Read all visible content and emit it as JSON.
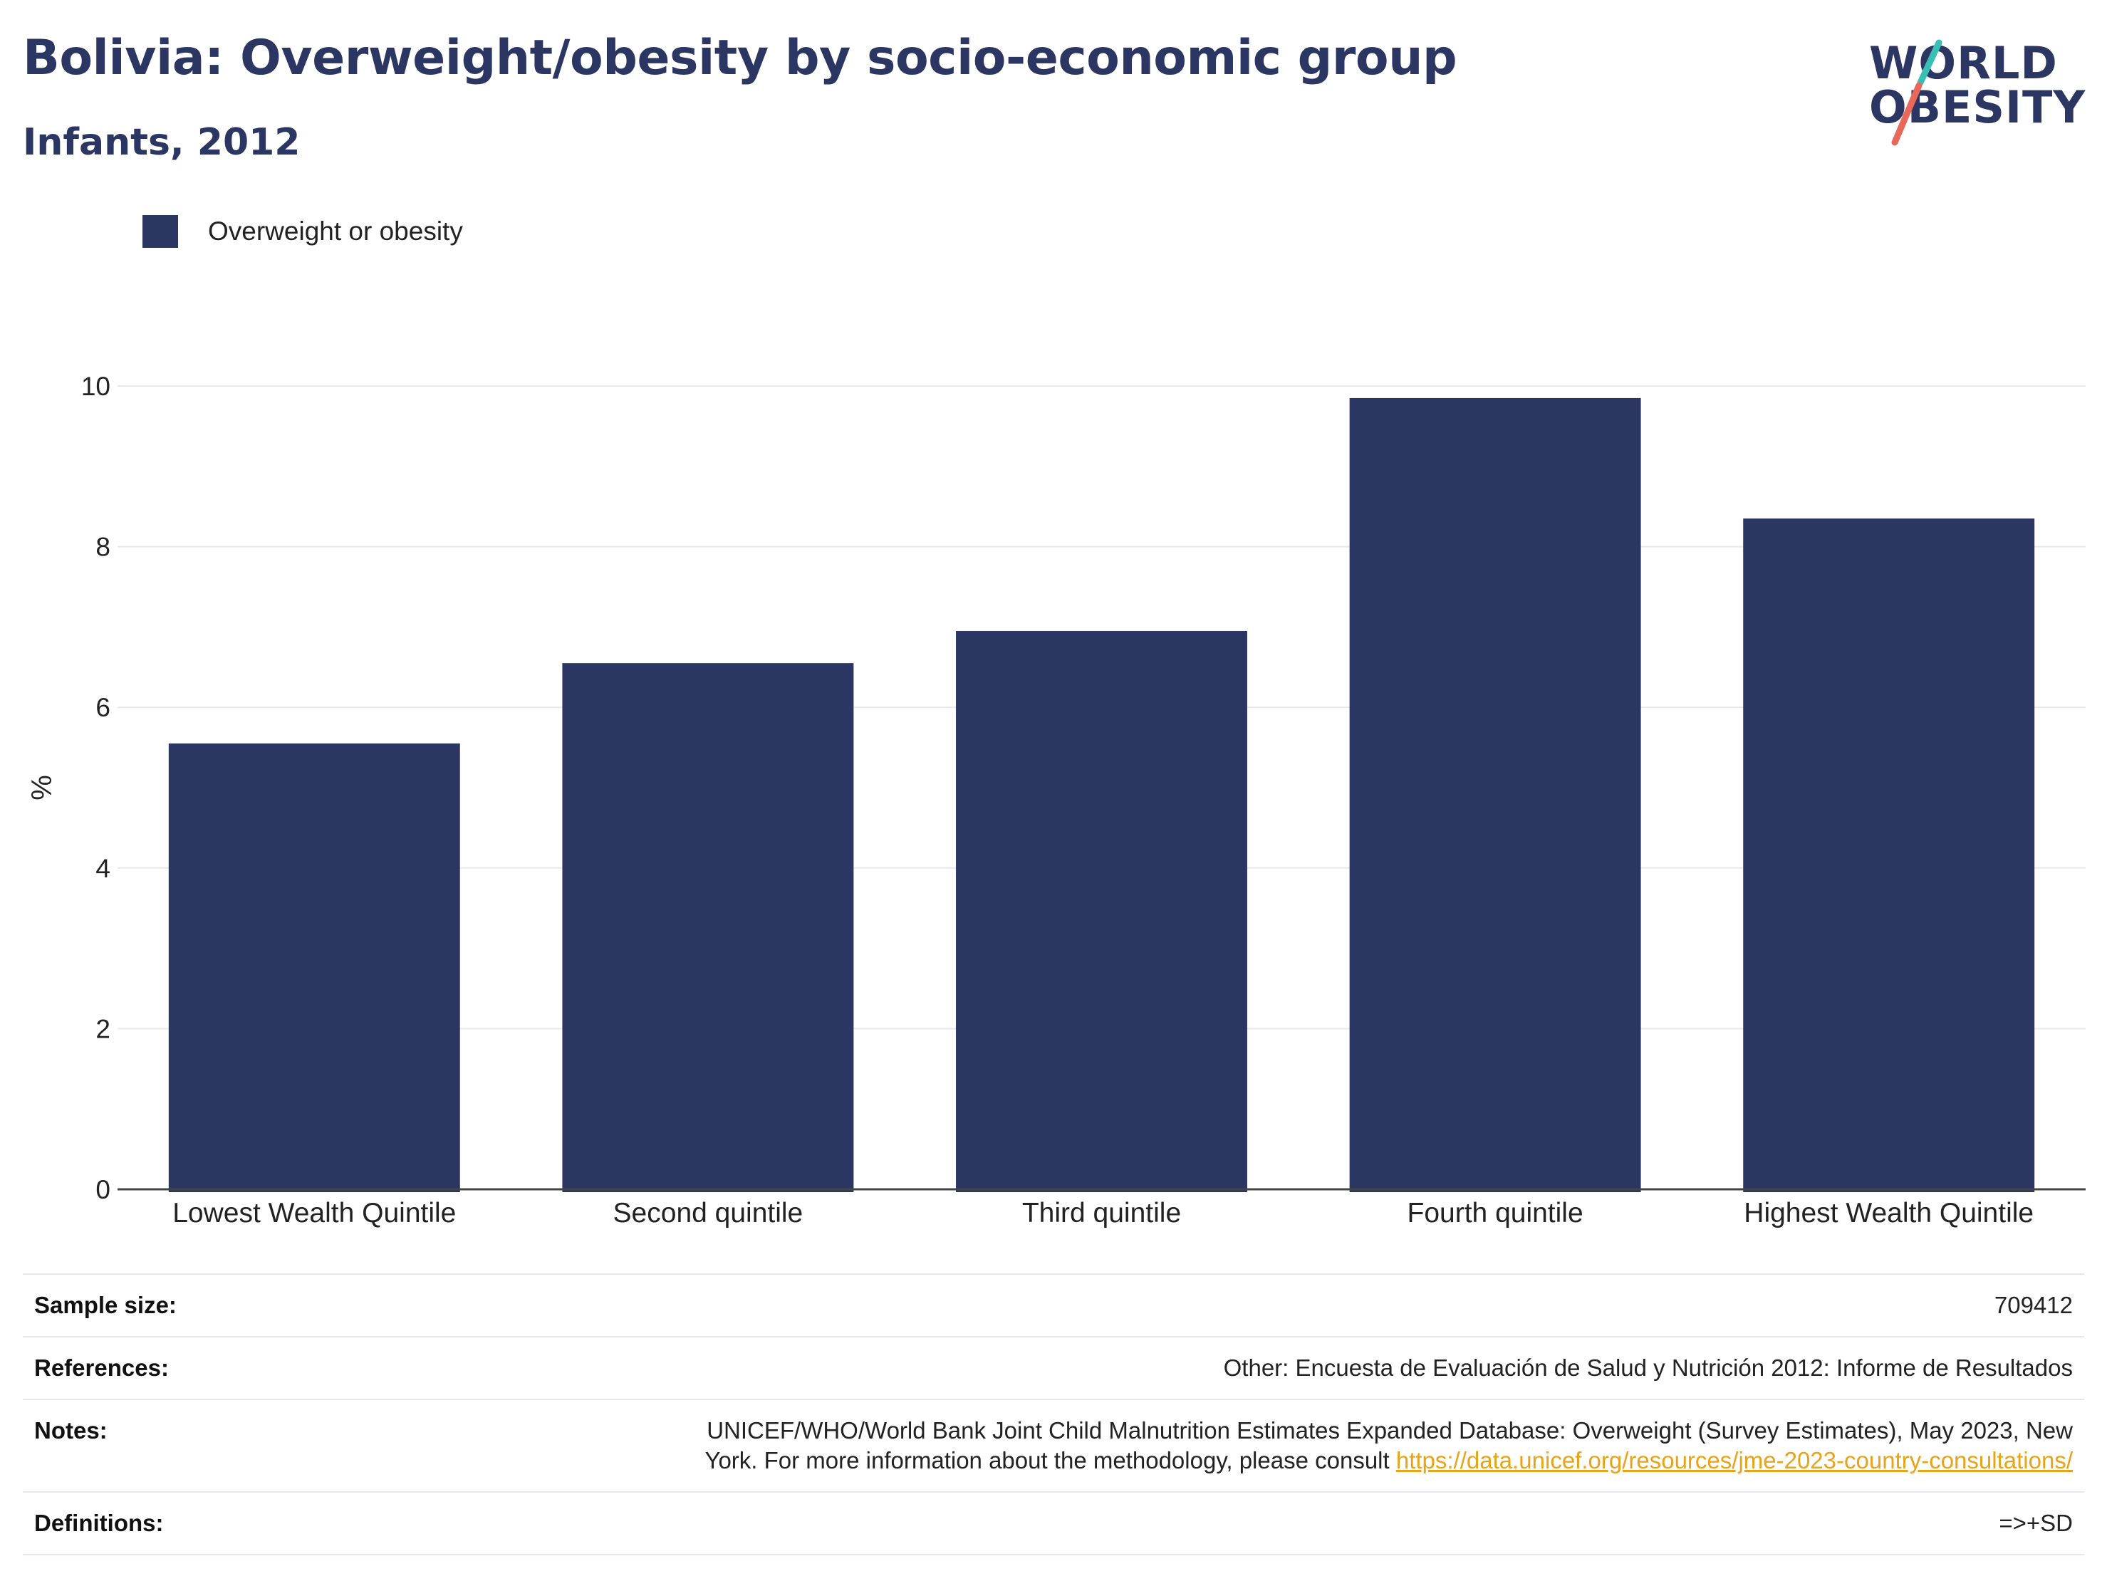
{
  "header": {
    "title": "Bolivia: Overweight/obesity by socio-economic group",
    "subtitle": "Infants, 2012"
  },
  "logo": {
    "line1": "WORLD",
    "line2": "OBESITY",
    "text_color": "#2b3663",
    "slash_top_color": "#3bbfb4",
    "slash_bottom_color": "#e8685a"
  },
  "colors": {
    "bar": "#2b3663",
    "grid": "#e8e8ee",
    "axis": "#444444",
    "link": "#e8a317"
  },
  "chart_data": {
    "type": "bar",
    "title": "Bolivia: Overweight/obesity by socio-economic group",
    "subtitle": "Infants, 2012",
    "categories": [
      "Lowest Wealth Quintile",
      "Second quintile",
      "Third quintile",
      "Fourth quintile",
      "Highest Wealth Quintile"
    ],
    "series": [
      {
        "name": "Overweight or obesity",
        "values": [
          5.55,
          6.55,
          6.95,
          9.85,
          8.35
        ],
        "color": "#2b3663"
      }
    ],
    "xlabel": "",
    "ylabel": "%",
    "ylim": [
      0,
      10
    ],
    "yticks": [
      0,
      2,
      4,
      6,
      8,
      10
    ],
    "grid": true,
    "legend": "top-left"
  },
  "info": {
    "sample_size_label": "Sample size:",
    "sample_size_value": "709412",
    "references_label": "References:",
    "references_value": "Other: Encuesta de Evaluación de Salud y Nutrición 2012: Informe de Resultados",
    "notes_label": "Notes:",
    "notes_text_1": "UNICEF/WHO/World Bank Joint Child Malnutrition Estimates Expanded Database: Overweight (Survey Estimates), May 2023, New",
    "notes_text_2": "York. For more information about the methodology, please consult ",
    "notes_link": "https://data.unicef.org/resources/jme-2023-country-consultations/",
    "definitions_label": "Definitions:",
    "definitions_value": "=>+SD"
  }
}
